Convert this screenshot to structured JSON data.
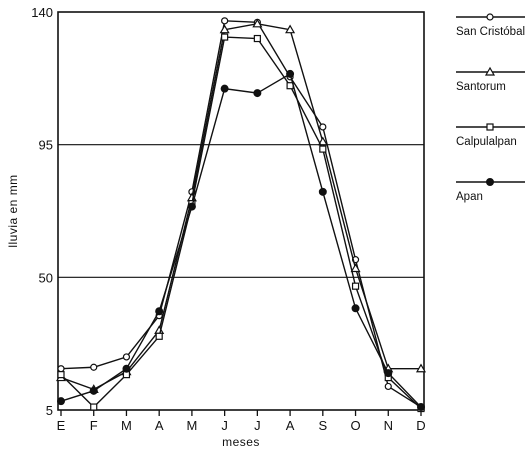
{
  "chart_data": {
    "type": "line",
    "xlabel": "meses",
    "ylabel": "lluvia en mm",
    "categories": [
      "E",
      "F",
      "M",
      "A",
      "M",
      "J",
      "J",
      "A",
      "S",
      "O",
      "N",
      "D"
    ],
    "y_ticks": [
      5,
      50,
      95,
      140
    ],
    "ylim": [
      5,
      140
    ],
    "grid": "horizontal at 50 and 95",
    "legend_position": "right",
    "series": [
      {
        "name": "San Cristóbal",
        "marker": "open-circle",
        "values": [
          19,
          19.5,
          23,
          37,
          79,
          137,
          136.5,
          118,
          101,
          56,
          13,
          6
        ]
      },
      {
        "name": "Santorum",
        "marker": "open-triangle",
        "values": [
          16,
          12,
          18,
          32,
          77,
          134,
          136,
          134,
          96,
          53,
          19,
          19
        ]
      },
      {
        "name": "Calpulalpan",
        "marker": "open-square",
        "values": [
          17,
          6,
          17,
          30,
          75,
          131.5,
          131,
          115,
          93.5,
          47,
          16,
          5.5
        ]
      },
      {
        "name": "Apan",
        "marker": "filled-circle",
        "values": [
          8,
          11.5,
          19,
          38.5,
          74,
          114,
          112.5,
          119,
          79,
          39.5,
          17.5,
          6
        ]
      }
    ]
  }
}
